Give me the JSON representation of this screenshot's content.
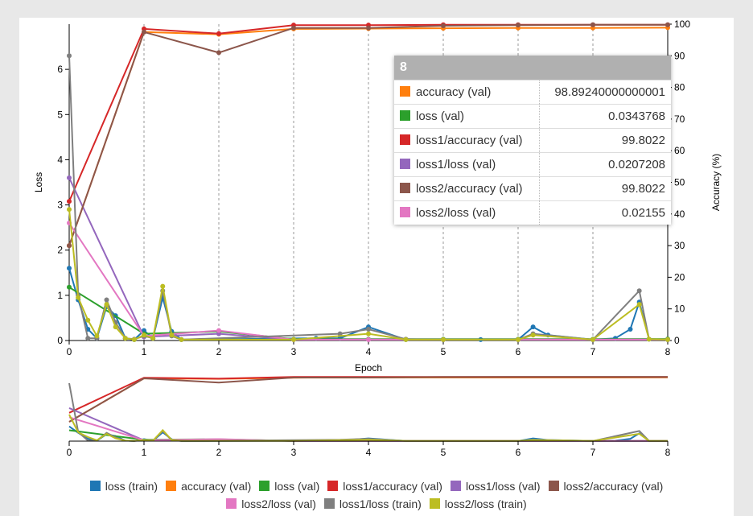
{
  "chart_data": [
    {
      "type": "line",
      "x_label": "Epoch",
      "y_left_label": "Loss",
      "y_right_label": "Accuracy (%)",
      "x_range": [
        0,
        8
      ],
      "y_left_range": [
        0,
        7
      ],
      "y_right_range": [
        0,
        100
      ],
      "x_ticks": [
        "0",
        "1",
        "2",
        "3",
        "4",
        "5",
        "6",
        "7",
        "8"
      ],
      "y_left_ticks": [
        "0",
        "1",
        "2",
        "3",
        "4",
        "5",
        "6"
      ],
      "y_right_ticks": [
        "0",
        "10",
        "20",
        "30",
        "40",
        "50",
        "60",
        "70",
        "80",
        "90",
        "100"
      ],
      "grid": "vertical dashed at each epoch",
      "series": [
        {
          "name": "loss (train)",
          "axis": "left",
          "color": "#1f77b4",
          "markers": true,
          "x": [
            0,
            0.12,
            0.25,
            0.37,
            0.5,
            0.62,
            0.75,
            0.87,
            1,
            1.12,
            1.25,
            1.37,
            1.5,
            3.3,
            3.62,
            4,
            4.5,
            5,
            5.5,
            6,
            6.2,
            6.4,
            7,
            7.3,
            7.5,
            7.62,
            7.75,
            8
          ],
          "y": [
            1.6,
            0.9,
            0.25,
            0.05,
            0.75,
            0.55,
            0.05,
            0.02,
            0.22,
            0.05,
            0.95,
            0.2,
            0.02,
            0.05,
            0.05,
            0.3,
            0.02,
            0.02,
            0.02,
            0.02,
            0.3,
            0.12,
            0.02,
            0.05,
            0.25,
            0.85,
            0.03,
            0.02
          ]
        },
        {
          "name": "accuracy (val)",
          "axis": "right",
          "color": "#ff7f0e",
          "markers": true,
          "x": [
            0,
            1,
            2,
            3,
            4,
            5,
            6,
            7,
            8
          ],
          "y": [
            30,
            97.5,
            96.8,
            98.5,
            98.6,
            98.7,
            98.8,
            98.8,
            98.89
          ]
        },
        {
          "name": "loss (val)",
          "axis": "left",
          "color": "#2ca02c",
          "markers": true,
          "x": [
            0,
            1,
            2,
            3,
            4,
            5,
            6,
            7,
            8
          ],
          "y": [
            1.18,
            0.15,
            0.2,
            0.03,
            0.03,
            0.03,
            0.03,
            0.03,
            0.034
          ]
        },
        {
          "name": "loss1/accuracy (val)",
          "axis": "right",
          "color": "#d62728",
          "markers": true,
          "x": [
            0,
            1,
            2,
            3,
            4,
            5,
            6,
            7,
            8
          ],
          "y": [
            44,
            98.5,
            97,
            99.7,
            99.7,
            99.8,
            99.8,
            99.8,
            99.8
          ]
        },
        {
          "name": "loss1/loss (val)",
          "axis": "left",
          "color": "#9467bd",
          "markers": true,
          "x": [
            0,
            1,
            2,
            3,
            4,
            5,
            6,
            7,
            8
          ],
          "y": [
            3.6,
            0.08,
            0.15,
            0.02,
            0.02,
            0.02,
            0.02,
            0.02,
            0.02
          ]
        },
        {
          "name": "loss2/accuracy (val)",
          "axis": "right",
          "color": "#8c564b",
          "markers": true,
          "x": [
            0,
            1,
            2,
            3,
            4,
            5,
            6,
            7,
            8
          ],
          "y": [
            30,
            97.5,
            91,
            98.8,
            98.8,
            99.5,
            99.7,
            99.8,
            99.8
          ]
        },
        {
          "name": "loss2/loss (val)",
          "axis": "left",
          "color": "#e377c2",
          "markers": true,
          "x": [
            0,
            1,
            2,
            3,
            4,
            5,
            6,
            7,
            8
          ],
          "y": [
            2.6,
            0.1,
            0.22,
            0.02,
            0.02,
            0.02,
            0.02,
            0.02,
            0.02
          ]
        },
        {
          "name": "loss1/loss (train)",
          "axis": "left",
          "color": "#7f7f7f",
          "markers": true,
          "x": [
            0,
            0.12,
            0.25,
            0.37,
            0.5,
            0.62,
            0.75,
            0.87,
            1,
            1.12,
            1.25,
            1.37,
            1.5,
            3.62,
            4,
            4.5,
            5,
            6,
            6.2,
            7,
            7.62,
            7.75,
            8
          ],
          "y": [
            6.3,
            1.0,
            0.05,
            0.05,
            0.9,
            0.4,
            0.05,
            0.03,
            0.1,
            0.05,
            1.1,
            0.1,
            0.02,
            0.15,
            0.25,
            0.03,
            0.02,
            0.02,
            0.15,
            0.02,
            1.1,
            0.03,
            0.02
          ]
        },
        {
          "name": "loss2/loss (train)",
          "axis": "left",
          "color": "#bcbd22",
          "markers": true,
          "x": [
            0,
            0.12,
            0.25,
            0.37,
            0.5,
            0.62,
            0.75,
            0.87,
            1,
            1.12,
            1.25,
            1.37,
            1.5,
            3,
            4,
            4.5,
            5,
            6,
            6.2,
            7,
            7.62,
            7.75,
            8
          ],
          "y": [
            2.9,
            0.95,
            0.45,
            0.1,
            0.8,
            0.3,
            0.05,
            0.02,
            0.12,
            0.05,
            1.2,
            0.12,
            0.02,
            0.02,
            0.15,
            0.02,
            0.02,
            0.02,
            0.12,
            0.02,
            0.8,
            0.03,
            0.02
          ]
        }
      ]
    },
    {
      "type": "line",
      "role": "range-overview",
      "x_range": [
        0,
        8
      ],
      "x_ticks": [
        "0",
        "1",
        "2",
        "3",
        "4",
        "5",
        "6",
        "7",
        "8"
      ]
    }
  ],
  "tooltip": {
    "title": "8",
    "rows": [
      {
        "label": "accuracy (val)",
        "value": "98.89240000000001",
        "color": "#ff7f0e"
      },
      {
        "label": "loss (val)",
        "value": "0.0343768",
        "color": "#2ca02c"
      },
      {
        "label": "loss1/accuracy (val)",
        "value": "99.8022",
        "color": "#d62728"
      },
      {
        "label": "loss1/loss (val)",
        "value": "0.0207208",
        "color": "#9467bd"
      },
      {
        "label": "loss2/accuracy (val)",
        "value": "99.8022",
        "color": "#8c564b"
      },
      {
        "label": "loss2/loss (val)",
        "value": "0.02155",
        "color": "#e377c2"
      }
    ]
  },
  "legend": [
    {
      "label": "loss (train)",
      "color": "#1f77b4"
    },
    {
      "label": "accuracy (val)",
      "color": "#ff7f0e"
    },
    {
      "label": "loss (val)",
      "color": "#2ca02c"
    },
    {
      "label": "loss1/accuracy (val)",
      "color": "#d62728"
    },
    {
      "label": "loss1/loss (val)",
      "color": "#9467bd"
    },
    {
      "label": "loss2/accuracy (val)",
      "color": "#8c564b"
    },
    {
      "label": "loss2/loss (val)",
      "color": "#e377c2"
    },
    {
      "label": "loss1/loss (train)",
      "color": "#7f7f7f"
    },
    {
      "label": "loss2/loss (train)",
      "color": "#bcbd22"
    }
  ]
}
